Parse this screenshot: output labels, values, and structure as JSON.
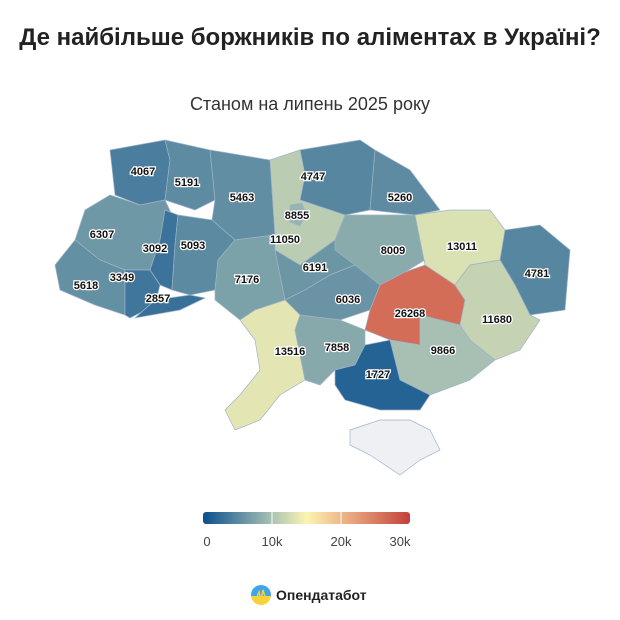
{
  "title": "Де найбільше боржників по аліментах в Україні?",
  "subtitle": "Станом на липень 2025 року",
  "colors": {
    "no_data": "#eef0f4",
    "scale": [
      "#0b4f8f",
      "#a9c2b3",
      "#fbf5b3",
      "#eeb98a",
      "#c3403a"
    ],
    "scale_stops": [
      0,
      10000,
      15000,
      20000,
      30000
    ]
  },
  "legend": {
    "min": 0,
    "max": 30000,
    "ticks": [
      "0",
      "10k",
      "20k",
      "30k"
    ]
  },
  "regions": [
    {
      "id": "volyn",
      "value": 4067
    },
    {
      "id": "rivne",
      "value": 5191
    },
    {
      "id": "zhytomyr",
      "value": 5463
    },
    {
      "id": "chernihiv",
      "value": 4747
    },
    {
      "id": "sumy",
      "value": 5260
    },
    {
      "id": "kyiv-oblast",
      "value": 11050
    },
    {
      "id": "kyiv-city",
      "value": 8855
    },
    {
      "id": "poltava",
      "value": 8009
    },
    {
      "id": "kharkiv",
      "value": 13011
    },
    {
      "id": "luhansk",
      "value": 4781
    },
    {
      "id": "lviv",
      "value": 6307
    },
    {
      "id": "ternopil",
      "value": 3092
    },
    {
      "id": "khmelnytskyi",
      "value": 5093
    },
    {
      "id": "zakarpattia",
      "value": 5618
    },
    {
      "id": "ivano-frankivsk",
      "value": 3349
    },
    {
      "id": "chernivtsi",
      "value": 2857
    },
    {
      "id": "vinnytsia",
      "value": 7176
    },
    {
      "id": "cherkasy",
      "value": 6191
    },
    {
      "id": "kirovohrad",
      "value": 6036
    },
    {
      "id": "dnipropetrovsk",
      "value": 26268
    },
    {
      "id": "donetsk",
      "value": 11680
    },
    {
      "id": "odesa",
      "value": 13516
    },
    {
      "id": "mykolaiv",
      "value": 7858
    },
    {
      "id": "zaporizhzhia",
      "value": 9866
    },
    {
      "id": "kherson",
      "value": 1727
    },
    {
      "id": "crimea",
      "value": null
    }
  ],
  "brand": "Опендатабот"
}
